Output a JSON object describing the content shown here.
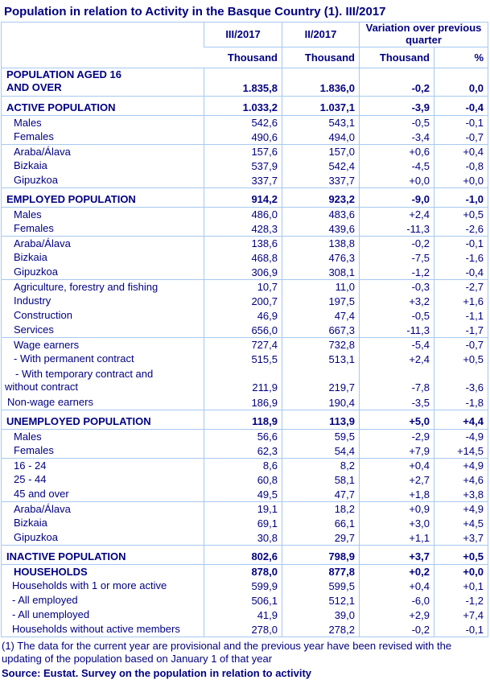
{
  "title": "Population in relation to Activity in the Basque Country (1). III/2017",
  "colors": {
    "text_navy": "#000080",
    "table_border": "#A6C9F0",
    "background": "#FFFFFF"
  },
  "header": {
    "col_current": "III/2017",
    "col_previous": "II/2017",
    "col_variation": "Variation over previous quarter",
    "units": [
      "Thousand",
      "Thousand",
      "Thousand",
      "%"
    ]
  },
  "rows": [
    {
      "kind": "pop16",
      "bold": true,
      "label": "POPULATION AGED 16",
      "label2": "AND OVER",
      "v": [
        "1.835,8",
        "1.836,0",
        "-0,2",
        "0,0"
      ]
    },
    {
      "kind": "spacer"
    },
    {
      "kind": "section",
      "bold": true,
      "label": "ACTIVE POPULATION",
      "v": [
        "1.033,2",
        "1.037,1",
        "-3,9",
        "-0,4"
      ]
    },
    {
      "kind": "item",
      "label": "Males",
      "v": [
        "542,6",
        "543,1",
        "-0,5",
        "-0,1"
      ]
    },
    {
      "kind": "item",
      "label": "Females",
      "v": [
        "490,6",
        "494,0",
        "-3,4",
        "-0,7"
      ]
    },
    {
      "kind": "item",
      "line_above": true,
      "label": "Araba/Álava",
      "v": [
        "157,6",
        "157,0",
        "+0,6",
        "+0,4"
      ]
    },
    {
      "kind": "item",
      "label": "Bizkaia",
      "v": [
        "537,9",
        "542,4",
        "-4,5",
        "-0,8"
      ]
    },
    {
      "kind": "item",
      "label": "Gipuzkoa",
      "v": [
        "337,7",
        "337,7",
        "+0,0",
        "+0,0"
      ]
    },
    {
      "kind": "spacer"
    },
    {
      "kind": "section",
      "bold": true,
      "label": "EMPLOYED POPULATION",
      "v": [
        "914,2",
        "923,2",
        "-9,0",
        "-1,0"
      ]
    },
    {
      "kind": "item",
      "label": "Males",
      "v": [
        "486,0",
        "483,6",
        "+2,4",
        "+0,5"
      ]
    },
    {
      "kind": "item",
      "label": "Females",
      "v": [
        "428,3",
        "439,6",
        "-11,3",
        "-2,6"
      ]
    },
    {
      "kind": "item",
      "line_above": true,
      "label": "Araba/Álava",
      "v": [
        "138,6",
        "138,8",
        "-0,2",
        "-0,1"
      ]
    },
    {
      "kind": "item",
      "label": "Bizkaia",
      "v": [
        "468,8",
        "476,3",
        "-7,5",
        "-1,6"
      ]
    },
    {
      "kind": "item",
      "label": "Gipuzkoa",
      "v": [
        "306,9",
        "308,1",
        "-1,2",
        "-0,4"
      ]
    },
    {
      "kind": "item",
      "line_above": true,
      "label": "Agriculture, forestry and fishing",
      "v": [
        "10,7",
        "11,0",
        "-0,3",
        "-2,7"
      ]
    },
    {
      "kind": "item",
      "label": "Industry",
      "v": [
        "200,7",
        "197,5",
        "+3,2",
        "+1,6"
      ]
    },
    {
      "kind": "item",
      "label": "Construction",
      "v": [
        "46,9",
        "47,4",
        "-0,5",
        "-1,1"
      ]
    },
    {
      "kind": "item",
      "label": "Services",
      "v": [
        "656,0",
        "667,3",
        "-11,3",
        "-1,7"
      ]
    },
    {
      "kind": "item",
      "line_above": true,
      "label": "Wage earners",
      "v": [
        "727,4",
        "732,8",
        "-5,4",
        "-0,7"
      ]
    },
    {
      "kind": "item",
      "label": "- With permanent contract",
      "v": [
        "515,5",
        "513,1",
        "+2,4",
        "+0,5"
      ]
    },
    {
      "kind": "temp",
      "label": "- With temporary contract and",
      "label2": "without contract",
      "v": [
        "211,9",
        "219,7",
        "-7,8",
        "-3,6"
      ]
    },
    {
      "kind": "item2",
      "label": "Non-wage earners",
      "v": [
        "186,9",
        "190,4",
        "-3,5",
        "-1,8"
      ]
    },
    {
      "kind": "spacer"
    },
    {
      "kind": "section",
      "bold": true,
      "label": "UNEMPLOYED POPULATION",
      "v": [
        "118,9",
        "113,9",
        "+5,0",
        "+4,4"
      ]
    },
    {
      "kind": "item",
      "label": "Males",
      "v": [
        "56,6",
        "59,5",
        "-2,9",
        "-4,9"
      ]
    },
    {
      "kind": "item",
      "label": "Females",
      "v": [
        "62,3",
        "54,4",
        "+7,9",
        "+14,5"
      ]
    },
    {
      "kind": "item",
      "line_above": true,
      "label": "16 - 24",
      "v": [
        "8,6",
        "8,2",
        "+0,4",
        "+4,9"
      ]
    },
    {
      "kind": "item",
      "label": "25 - 44",
      "v": [
        "60,8",
        "58,1",
        "+2,7",
        "+4,6"
      ]
    },
    {
      "kind": "item",
      "label": "45 and over",
      "v": [
        "49,5",
        "47,7",
        "+1,8",
        "+3,8"
      ]
    },
    {
      "kind": "item",
      "line_above": true,
      "label": "Araba/Álava",
      "v": [
        "19,1",
        "18,2",
        "+0,9",
        "+4,9"
      ]
    },
    {
      "kind": "item",
      "label": "Bizkaia",
      "v": [
        "69,1",
        "66,1",
        "+3,0",
        "+4,5"
      ]
    },
    {
      "kind": "item",
      "label": "Gipuzkoa",
      "v": [
        "30,8",
        "29,7",
        "+1,1",
        "+3,7"
      ]
    },
    {
      "kind": "spacer"
    },
    {
      "kind": "section",
      "bold": true,
      "label": "INACTIVE POPULATION",
      "v": [
        "802,6",
        "798,9",
        "+3,7",
        "+0,5"
      ]
    },
    {
      "kind": "hsection",
      "bold": true,
      "label": "HOUSEHOLDS",
      "v": [
        "878,0",
        "877,8",
        "+0,2",
        "+0,0"
      ]
    },
    {
      "kind": "hitem",
      "label": "Households with 1 or more active",
      "v": [
        "599,9",
        "599,5",
        "+0,4",
        "+0,1"
      ]
    },
    {
      "kind": "hitem",
      "label": "- All employed",
      "v": [
        "506,1",
        "512,1",
        "-6,0",
        "-1,2"
      ]
    },
    {
      "kind": "hitem",
      "label": "- All unemployed",
      "v": [
        "41,9",
        "39,0",
        "+2,9",
        "+7,4"
      ]
    },
    {
      "kind": "hitem",
      "label": "Households without active members",
      "v": [
        "278,0",
        "278,2",
        "-0,2",
        "-0,1"
      ]
    }
  ],
  "footnotes": {
    "note": "(1) The data for the current year are provisional and the previous year have been revised with the updating of the population based on January 1 of that year",
    "source": "Source: Eustat. Survey on the population in relation to activity"
  }
}
